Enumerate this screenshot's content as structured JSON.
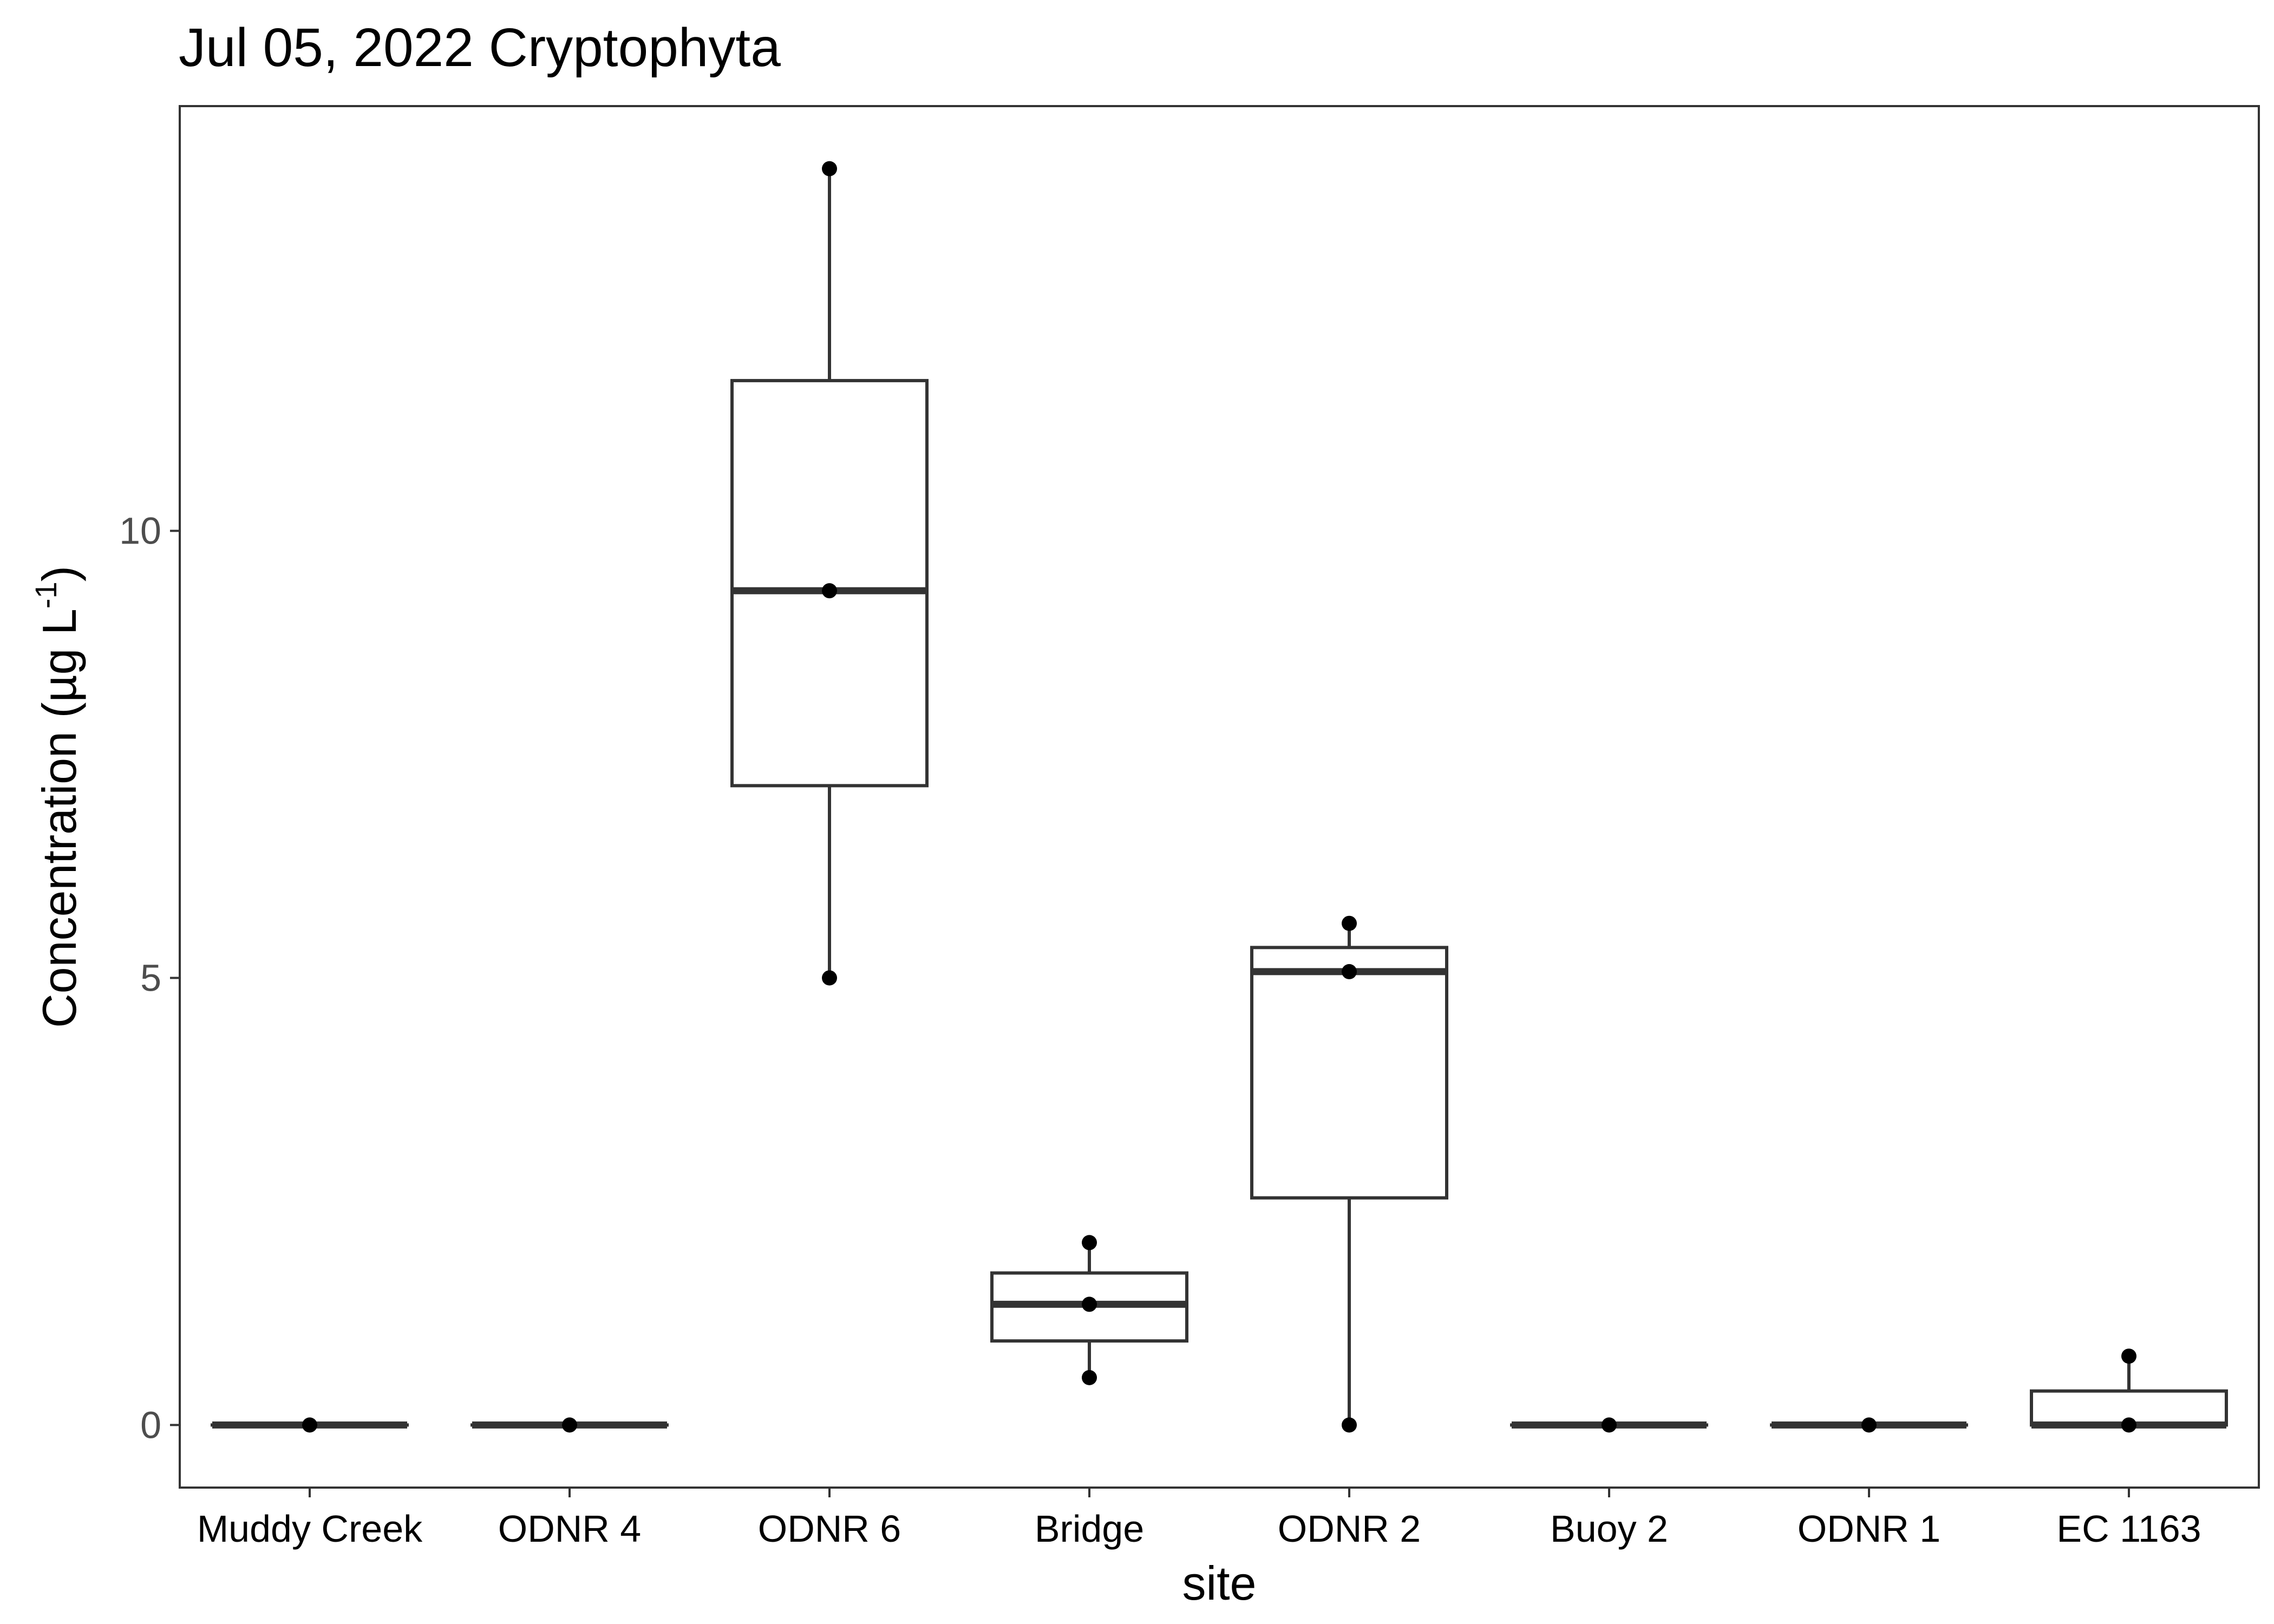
{
  "chart_data": {
    "type": "box",
    "title": "Jul 05, 2022 Cryptophyta",
    "xlabel": "site",
    "ylabel": {
      "prefix": "Concentration (µg L",
      "superscript": "-1",
      "suffix": ")"
    },
    "ylim": [
      -0.7,
      14.75
    ],
    "yticks": [
      0,
      5,
      10
    ],
    "grid": false,
    "legend": "none",
    "categories": [
      "Muddy Creek",
      "ODNR 4",
      "ODNR 6",
      "Bridge",
      "ODNR 2",
      "Buoy 2",
      "ODNR 1",
      "EC 1163"
    ],
    "boxes": [
      {
        "site": "Muddy Creek",
        "min": 0,
        "q1": 0,
        "median": 0,
        "q3": 0,
        "max": 0,
        "points": [
          0
        ]
      },
      {
        "site": "ODNR 4",
        "min": 0,
        "q1": 0,
        "median": 0,
        "q3": 0,
        "max": 0,
        "points": [
          0
        ]
      },
      {
        "site": "ODNR 6",
        "min": 5.0,
        "q1": 7.15,
        "median": 9.33,
        "q3": 11.68,
        "max": 14.05,
        "points": [
          5.0,
          9.33,
          14.05
        ]
      },
      {
        "site": "Bridge",
        "min": 0.53,
        "q1": 0.94,
        "median": 1.35,
        "q3": 1.7,
        "max": 2.04,
        "points": [
          0.53,
          1.35,
          2.04
        ]
      },
      {
        "site": "ODNR 2",
        "min": 0,
        "q1": 2.54,
        "median": 5.07,
        "q3": 5.34,
        "max": 5.61,
        "points": [
          0,
          5.07,
          5.61
        ]
      },
      {
        "site": "Buoy 2",
        "min": 0,
        "q1": 0,
        "median": 0,
        "q3": 0,
        "max": 0,
        "points": [
          0
        ]
      },
      {
        "site": "ODNR 1",
        "min": 0,
        "q1": 0,
        "median": 0,
        "q3": 0,
        "max": 0,
        "points": [
          0
        ]
      },
      {
        "site": "EC 1163",
        "min": 0,
        "q1": 0,
        "median": 0,
        "q3": 0.38,
        "max": 0.77,
        "points": [
          0,
          0.77
        ]
      }
    ]
  }
}
